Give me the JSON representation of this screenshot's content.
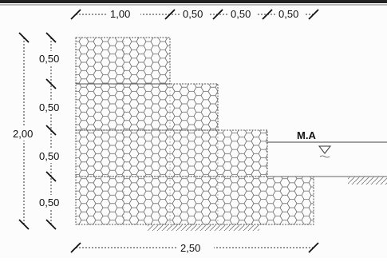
{
  "dimensions": {
    "top": [
      "1,00",
      "0,50",
      "0,50",
      "0,50"
    ],
    "left": [
      "0,50",
      "0,50",
      "0,50",
      "0,50"
    ],
    "total_height": "2,00",
    "total_width": "2,50"
  },
  "water_level_label": "M.A",
  "colors": {
    "line": "#333333",
    "hatch": "#666666",
    "text": "#111111"
  }
}
